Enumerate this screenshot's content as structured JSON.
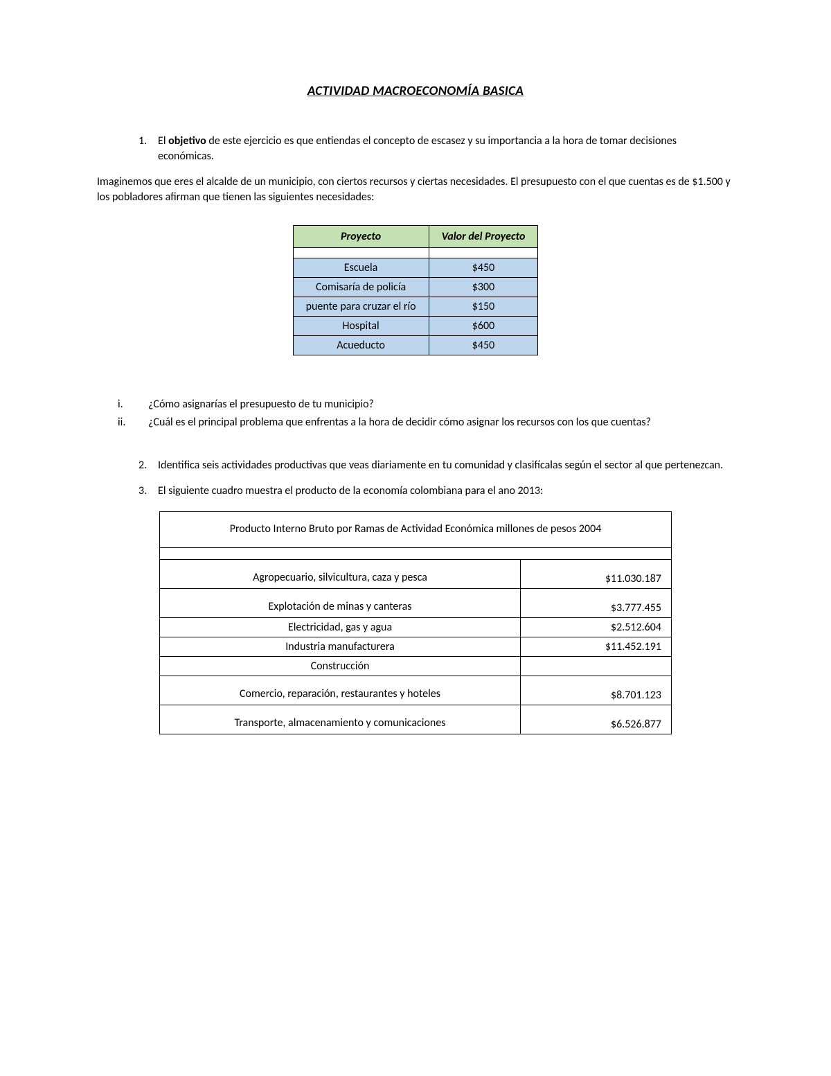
{
  "title": "ACTIVIDAD MACROECONOMÍA BASICA",
  "item1": {
    "num": "1.",
    "lead": "El ",
    "bold": "objetivo",
    "rest": " de este ejercicio es que entiendas el concepto de escasez y su importancia a la hora de tomar decisiones económicas."
  },
  "scenario": "Imaginemos que eres el alcalde de un municipio, con ciertos recursos y ciertas necesidades. El presupuesto con el que cuentas es de $1.500 y los pobladores afirman que tienen las siguientes necesidades:",
  "table1": {
    "header_bg": "#c5e0b3",
    "row_bg": "#bdd6ee",
    "columns": [
      "Proyecto",
      "Valor del Proyecto"
    ],
    "rows": [
      [
        "Escuela",
        "$450"
      ],
      [
        "Comisaría de policía",
        "$300"
      ],
      [
        "puente para cruzar el río",
        "$150"
      ],
      [
        "Hospital",
        "$600"
      ],
      [
        "Acueducto",
        "$450"
      ]
    ]
  },
  "roman": {
    "i": {
      "n": "i.",
      "t": "¿Cómo asignarías el presupuesto de tu municipio?"
    },
    "ii": {
      "n": "ii.",
      "t": "¿Cuál es el principal problema que enfrentas a la hora de decidir cómo asignar los recursos con los que cuentas?"
    }
  },
  "item2": {
    "num": "2.",
    "t": "Identifica seis actividades productivas que veas diariamente en tu comunidad y clasifícalas según el sector al que pertenezcan."
  },
  "item3": {
    "num": "3.",
    "t": "El siguiente cuadro muestra el producto de la economía colombiana para el ano 2013:"
  },
  "table2": {
    "title": "Producto Interno Bruto  por Ramas de Actividad Económica millones de pesos 2004",
    "rows": [
      {
        "sector": "Agropecuario, silvicultura, caza y pesca",
        "value": "$11.030.187",
        "tall": true
      },
      {
        "sector": "Explotación de minas y canteras",
        "value": "$3.777.455",
        "tall": true
      },
      {
        "sector": "Electricidad, gas y agua",
        "value": "$2.512.604",
        "tall": false
      },
      {
        "sector": "Industria manufacturera",
        "value": "$11.452.191",
        "tall": false
      },
      {
        "sector": "Construcción",
        "value": "",
        "tall": false
      },
      {
        "sector": "Comercio, reparación, restaurantes y hoteles",
        "value": "$8.701.123",
        "tall": true
      },
      {
        "sector": "Transporte, almacenamiento y comunicaciones",
        "value": "$6.526.877",
        "tall": true
      }
    ]
  }
}
